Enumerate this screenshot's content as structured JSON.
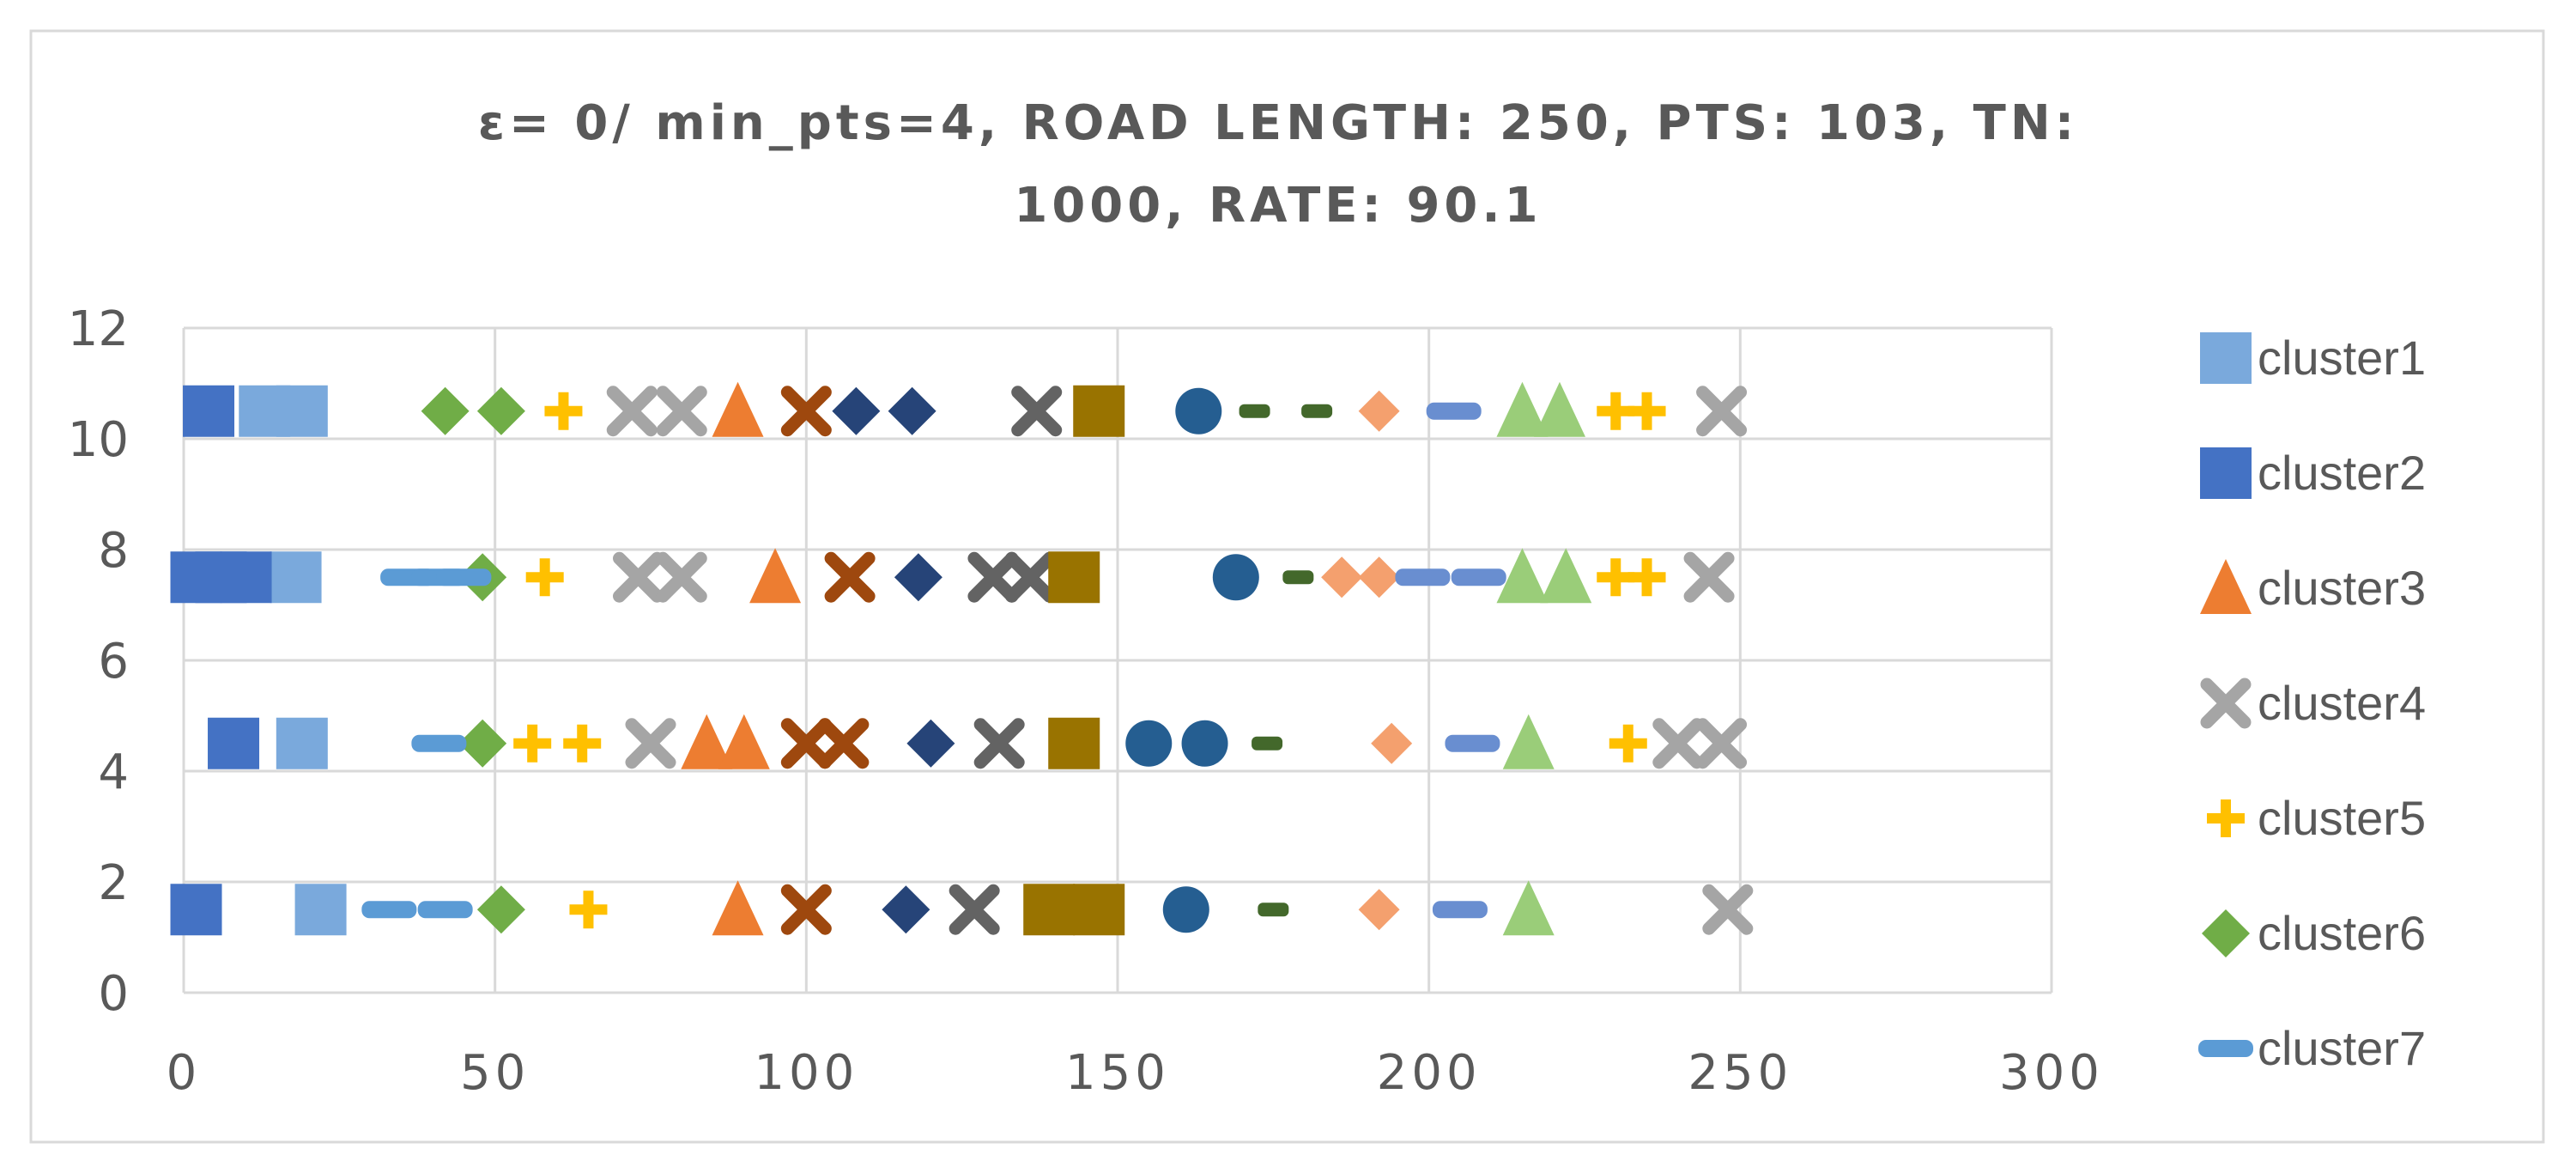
{
  "chart_data": {
    "type": "scatter",
    "title": "ε= 0/ min_pts=4, ROAD LENGTH: 250, PTS: 103, TN: 1000, RATE: 90.1",
    "title_lines": [
      "ε= 0/ min_pts=4, ROAD LENGTH: 250, PTS: 103, TN:",
      "1000, RATE: 90.1"
    ],
    "xlabel": "",
    "ylabel": "",
    "xlim": [
      0,
      300
    ],
    "ylim": [
      0,
      12
    ],
    "x_ticks": [
      "0",
      "50",
      "100",
      "150",
      "200",
      "250",
      "300"
    ],
    "y_ticks": [
      "0",
      "2",
      "4",
      "6",
      "8",
      "10",
      "12"
    ],
    "grid": true,
    "legend_position": "right",
    "series": [
      {
        "name": "cluster1",
        "color": "#7aa9dc",
        "marker": "square",
        "points": [
          [
            13,
            10.5
          ],
          [
            19,
            10.5
          ],
          [
            18,
            7.5
          ],
          [
            19,
            4.5
          ],
          [
            22,
            1.5
          ]
        ]
      },
      {
        "name": "cluster2",
        "color": "#4472c4",
        "marker": "square",
        "points": [
          [
            4,
            10.5
          ],
          [
            2,
            7.5
          ],
          [
            6,
            7.5
          ],
          [
            10,
            7.5
          ],
          [
            8,
            4.5
          ],
          [
            2,
            1.5
          ]
        ]
      },
      {
        "name": "cluster3",
        "color": "#ed7d31",
        "marker": "triangle",
        "points": [
          [
            89,
            10.5
          ],
          [
            95,
            7.5
          ],
          [
            84,
            4.5
          ],
          [
            90,
            4.5
          ],
          [
            89,
            1.5
          ]
        ]
      },
      {
        "name": "cluster4",
        "color": "#a5a5a5",
        "marker": "x",
        "points": [
          [
            72,
            10.5
          ],
          [
            80,
            10.5
          ],
          [
            73,
            7.5
          ],
          [
            80,
            7.5
          ],
          [
            75,
            4.5
          ],
          [
            247,
            10.5
          ],
          [
            245,
            7.5
          ],
          [
            240,
            4.5
          ],
          [
            247,
            4.5
          ],
          [
            248,
            1.5
          ]
        ]
      },
      {
        "name": "cluster5",
        "color": "#ffc000",
        "marker": "plus",
        "points": [
          [
            61,
            10.5
          ],
          [
            58,
            7.5
          ],
          [
            56,
            4.5
          ],
          [
            64,
            4.5
          ],
          [
            65,
            1.5
          ],
          [
            230,
            10.5
          ],
          [
            235,
            10.5
          ],
          [
            230,
            7.5
          ],
          [
            235,
            7.5
          ],
          [
            232,
            4.5
          ]
        ]
      },
      {
        "name": "cluster6",
        "color": "#70ad47",
        "marker": "diamond",
        "points": [
          [
            42,
            10.5
          ],
          [
            51,
            10.5
          ],
          [
            48,
            7.5
          ],
          [
            48,
            4.5
          ],
          [
            51,
            1.5
          ]
        ]
      },
      {
        "name": "cluster7",
        "color": "#5b9bd5",
        "marker": "dash",
        "points": [
          [
            36,
            7.5
          ],
          [
            41,
            7.5
          ],
          [
            45,
            7.5
          ],
          [
            41,
            4.5
          ],
          [
            33,
            1.5
          ],
          [
            42,
            1.5
          ]
        ]
      },
      {
        "name": "",
        "color": "#9e480e",
        "marker": "x",
        "points": [
          [
            100,
            10.5
          ],
          [
            107,
            7.5
          ],
          [
            100,
            4.5
          ],
          [
            106,
            4.5
          ],
          [
            100,
            1.5
          ]
        ]
      },
      {
        "name": "",
        "color": "#264478",
        "marker": "diamond",
        "points": [
          [
            108,
            10.5
          ],
          [
            117,
            10.5
          ],
          [
            118,
            7.5
          ],
          [
            120,
            4.5
          ],
          [
            116,
            1.5
          ]
        ]
      },
      {
        "name": "",
        "color": "#636363",
        "marker": "x",
        "points": [
          [
            137,
            10.5
          ],
          [
            130,
            7.5
          ],
          [
            136,
            7.5
          ],
          [
            131,
            4.5
          ],
          [
            127,
            1.5
          ]
        ]
      },
      {
        "name": "",
        "color": "#997300",
        "marker": "square",
        "points": [
          [
            147,
            10.5
          ],
          [
            143,
            7.5
          ],
          [
            143,
            4.5
          ],
          [
            139,
            1.5
          ],
          [
            147,
            1.5
          ]
        ]
      },
      {
        "name": "",
        "color": "#255e91",
        "marker": "circle",
        "points": [
          [
            163,
            10.5
          ],
          [
            169,
            7.5
          ],
          [
            155,
            4.5
          ],
          [
            164,
            4.5
          ],
          [
            161,
            1.5
          ]
        ]
      },
      {
        "name": "",
        "color": "#43682b",
        "marker": "dash-small",
        "points": [
          [
            172,
            10.5
          ],
          [
            182,
            10.5
          ],
          [
            179,
            7.5
          ],
          [
            174,
            4.5
          ],
          [
            175,
            1.5
          ]
        ]
      },
      {
        "name": "",
        "color": "#f4a06e",
        "marker": "diamond-small",
        "points": [
          [
            192,
            10.5
          ],
          [
            186,
            7.5
          ],
          [
            192,
            7.5
          ],
          [
            194,
            4.5
          ],
          [
            192,
            1.5
          ]
        ]
      },
      {
        "name": "",
        "color": "#698ed0",
        "marker": "dash",
        "points": [
          [
            204,
            10.5
          ],
          [
            199,
            7.5
          ],
          [
            208,
            7.5
          ],
          [
            207,
            4.5
          ],
          [
            205,
            1.5
          ]
        ]
      },
      {
        "name": "",
        "color": "#9acd79",
        "marker": "triangle",
        "points": [
          [
            215,
            10.5
          ],
          [
            221,
            10.5
          ],
          [
            215,
            7.5
          ],
          [
            222,
            7.5
          ],
          [
            216,
            4.5
          ],
          [
            216,
            1.5
          ]
        ]
      }
    ]
  }
}
